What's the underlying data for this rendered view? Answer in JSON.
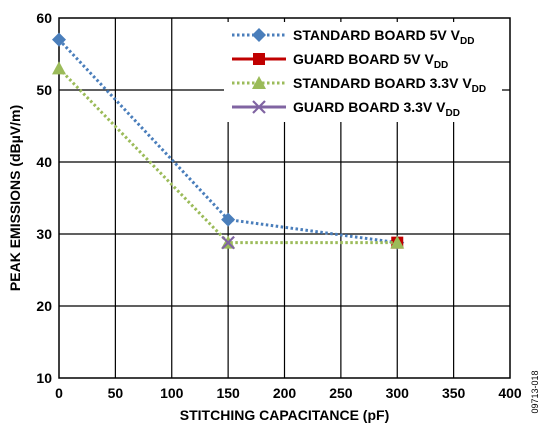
{
  "chart_data": {
    "type": "line",
    "x": [
      0,
      150,
      300
    ],
    "xlabel": "STITCHING CAPACITANCE (pF)",
    "ylabel": "PEAK EMISSIONS (dBµV/m)",
    "xlim": [
      0,
      400
    ],
    "ylim": [
      10,
      60
    ],
    "xticks": [
      0,
      50,
      100,
      150,
      200,
      250,
      300,
      350,
      400
    ],
    "yticks": [
      10,
      20,
      30,
      40,
      50,
      60
    ],
    "grid": true,
    "legend_position": "top-right",
    "series": [
      {
        "name": "STANDARD BOARD 5V",
        "subscript": "DD",
        "name_suffix": "V",
        "x": [
          0,
          150,
          300
        ],
        "y": [
          57,
          32,
          28.8
        ],
        "color": "#4a7ebb",
        "marker": "diamond",
        "line": "dotted"
      },
      {
        "name": "GUARD BOARD 5V",
        "subscript": "DD",
        "name_suffix": "V",
        "x": [
          300
        ],
        "y": [
          28.8
        ],
        "color": "#c00000",
        "marker": "square",
        "line": "solid"
      },
      {
        "name": "STANDARD BOARD 3.3V",
        "subscript": "DD",
        "name_suffix": "V",
        "x": [
          0,
          150,
          300
        ],
        "y": [
          53,
          28.8,
          28.8
        ],
        "color": "#9bbb59",
        "marker": "triangle",
        "line": "dotted"
      },
      {
        "name": "GUARD BOARD 3.3V",
        "subscript": "DD",
        "name_suffix": "V",
        "x": [
          150
        ],
        "y": [
          28.8
        ],
        "color": "#8064a2",
        "marker": "x",
        "line": "solid"
      }
    ]
  },
  "figure_id": "09713-018"
}
